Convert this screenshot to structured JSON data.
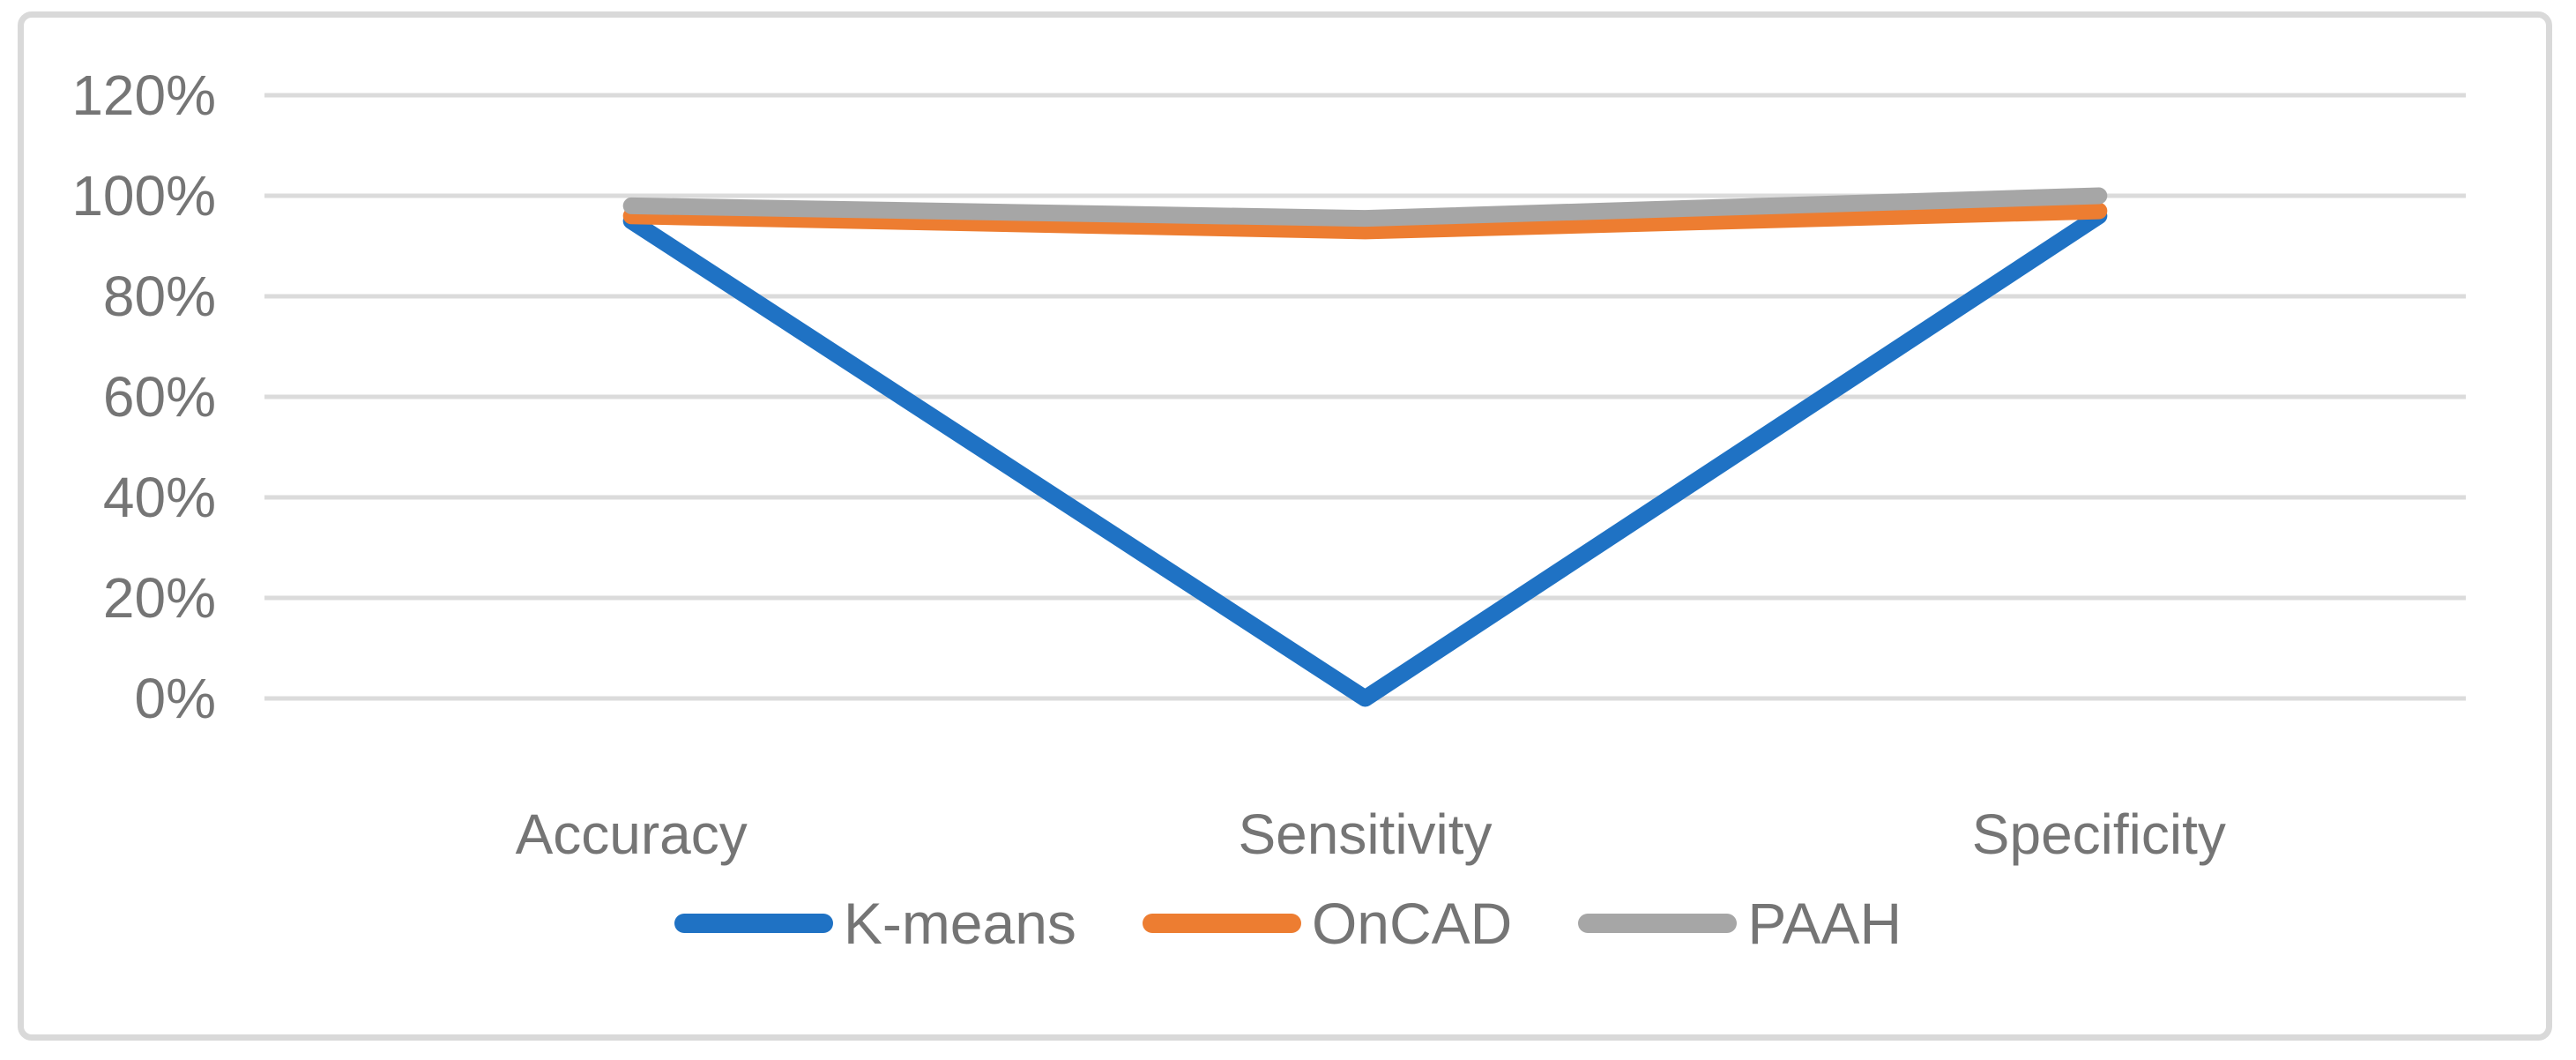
{
  "chart_data": {
    "type": "line",
    "title": "",
    "xlabel": "",
    "ylabel": "",
    "categories": [
      "Accuracy",
      "Sensitivity",
      "Specificity"
    ],
    "series": [
      {
        "name": "K-means",
        "color": "#1F72C4",
        "values": [
          95,
          0,
          96
        ]
      },
      {
        "name": "OnCAD",
        "color": "#ED7D31",
        "values": [
          96,
          93,
          97
        ]
      },
      {
        "name": "PAAH",
        "color": "#A6A6A6",
        "values": [
          98,
          95.5,
          100
        ]
      }
    ],
    "value_unit": "%",
    "ylim": [
      0,
      120
    ],
    "y_ticks": [
      {
        "value": 120,
        "label": "120%"
      },
      {
        "value": 100,
        "label": "100%"
      },
      {
        "value": 80,
        "label": "80%"
      },
      {
        "value": 60,
        "label": "60%"
      },
      {
        "value": 40,
        "label": "40%"
      },
      {
        "value": 20,
        "label": "20%"
      },
      {
        "value": 0,
        "label": "0%"
      }
    ],
    "grid": true,
    "legend_position": "bottom-center",
    "colors": {
      "gridline": "#DBDBDB",
      "axis_label": "#757575",
      "legend_label": "#757575",
      "chart_border": "#D9D9D9",
      "background": "#FFFFFF"
    }
  }
}
